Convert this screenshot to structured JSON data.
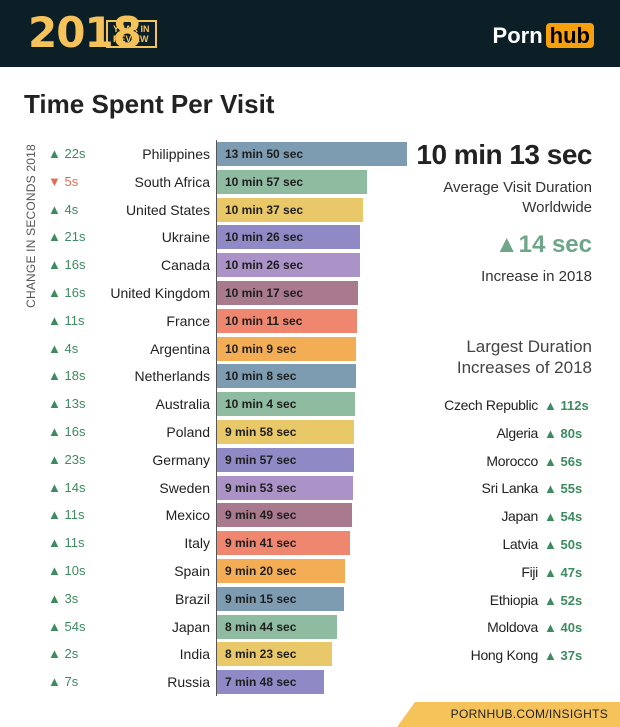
{
  "header": {
    "year": "2018",
    "badge_line1": "YEAR IN",
    "badge_line2": "REVIEW",
    "logo_text": "Porn",
    "logo_badge": "hub"
  },
  "chart_data": {
    "type": "bar",
    "title": "Time Spent Per Visit",
    "ylabel": "CHANGE IN SECONDS 2018",
    "value_unit": "seconds",
    "rows": [
      {
        "country": "Philippines",
        "label": "13 min 50 sec",
        "seconds": 830,
        "change": "22s",
        "dir": "up",
        "color": "#7d9cb2"
      },
      {
        "country": "South Africa",
        "label": "10 min 57 sec",
        "seconds": 657,
        "change": "5s",
        "dir": "down",
        "color": "#8fbba0"
      },
      {
        "country": "United States",
        "label": "10 min 37 sec",
        "seconds": 637,
        "change": "4s",
        "dir": "up",
        "color": "#e9c86a"
      },
      {
        "country": "Ukraine",
        "label": "10 min 26 sec",
        "seconds": 626,
        "change": "21s",
        "dir": "up",
        "color": "#8f89c6"
      },
      {
        "country": "Canada",
        "label": "10 min 26 sec",
        "seconds": 626,
        "change": "16s",
        "dir": "up",
        "color": "#ab93c8"
      },
      {
        "country": "United Kingdom",
        "label": "10 min 17 sec",
        "seconds": 617,
        "change": "16s",
        "dir": "up",
        "color": "#a97a8d"
      },
      {
        "country": "France",
        "label": "10 min 11 sec",
        "seconds": 611,
        "change": "11s",
        "dir": "up",
        "color": "#ee8670"
      },
      {
        "country": "Argentina",
        "label": "10 min 9 sec",
        "seconds": 609,
        "change": "4s",
        "dir": "up",
        "color": "#f3ae55"
      },
      {
        "country": "Netherlands",
        "label": "10 min 8 sec",
        "seconds": 608,
        "change": "18s",
        "dir": "up",
        "color": "#7d9cb2"
      },
      {
        "country": "Australia",
        "label": "10 min 4 sec",
        "seconds": 604,
        "change": "13s",
        "dir": "up",
        "color": "#8fbba0"
      },
      {
        "country": "Poland",
        "label": "9 min 58 sec",
        "seconds": 598,
        "change": "16s",
        "dir": "up",
        "color": "#e9c86a"
      },
      {
        "country": "Germany",
        "label": "9 min 57 sec",
        "seconds": 597,
        "change": "23s",
        "dir": "up",
        "color": "#8f89c6"
      },
      {
        "country": "Sweden",
        "label": "9 min 53 sec",
        "seconds": 593,
        "change": "14s",
        "dir": "up",
        "color": "#ab93c8"
      },
      {
        "country": "Mexico",
        "label": "9 min 49 sec",
        "seconds": 589,
        "change": "11s",
        "dir": "up",
        "color": "#a97a8d"
      },
      {
        "country": "Italy",
        "label": "9 min 41 sec",
        "seconds": 581,
        "change": "11s",
        "dir": "up",
        "color": "#ee8670"
      },
      {
        "country": "Spain",
        "label": "9 min 20 sec",
        "seconds": 560,
        "change": "10s",
        "dir": "up",
        "color": "#f3ae55"
      },
      {
        "country": "Brazil",
        "label": "9 min 15 sec",
        "seconds": 555,
        "change": "3s",
        "dir": "up",
        "color": "#7d9cb2"
      },
      {
        "country": "Japan",
        "label": "8 min 44 sec",
        "seconds": 524,
        "change": "54s",
        "dir": "up",
        "color": "#8fbba0"
      },
      {
        "country": "India",
        "label": "8 min 23 sec",
        "seconds": 503,
        "change": "2s",
        "dir": "up",
        "color": "#e9c86a"
      },
      {
        "country": "Russia",
        "label": "7 min 48 sec",
        "seconds": 468,
        "change": "7s",
        "dir": "up",
        "color": "#8f89c6"
      }
    ]
  },
  "summary": {
    "big_value": "10 min 13 sec",
    "big_label": "Average Visit Duration Worldwide",
    "increase_value": "14 sec",
    "increase_label": "Increase in 2018"
  },
  "largest_increases": {
    "title": "Largest Duration Increases of 2018",
    "items": [
      {
        "country": "Czech Republic",
        "change": "112s"
      },
      {
        "country": "Algeria",
        "change": "80s"
      },
      {
        "country": "Morocco",
        "change": "56s"
      },
      {
        "country": "Sri Lanka",
        "change": "55s"
      },
      {
        "country": "Japan",
        "change": "54s"
      },
      {
        "country": "Latvia",
        "change": "50s"
      },
      {
        "country": "Fiji",
        "change": "47s"
      },
      {
        "country": "Ethiopia",
        "change": "52s"
      },
      {
        "country": "Moldova",
        "change": "40s"
      },
      {
        "country": "Hong Kong",
        "change": "37s"
      }
    ]
  },
  "footer": {
    "text": "PORNHUB.COM/INSIGHTS"
  },
  "arrows": {
    "up": "▲",
    "down": "▼"
  }
}
